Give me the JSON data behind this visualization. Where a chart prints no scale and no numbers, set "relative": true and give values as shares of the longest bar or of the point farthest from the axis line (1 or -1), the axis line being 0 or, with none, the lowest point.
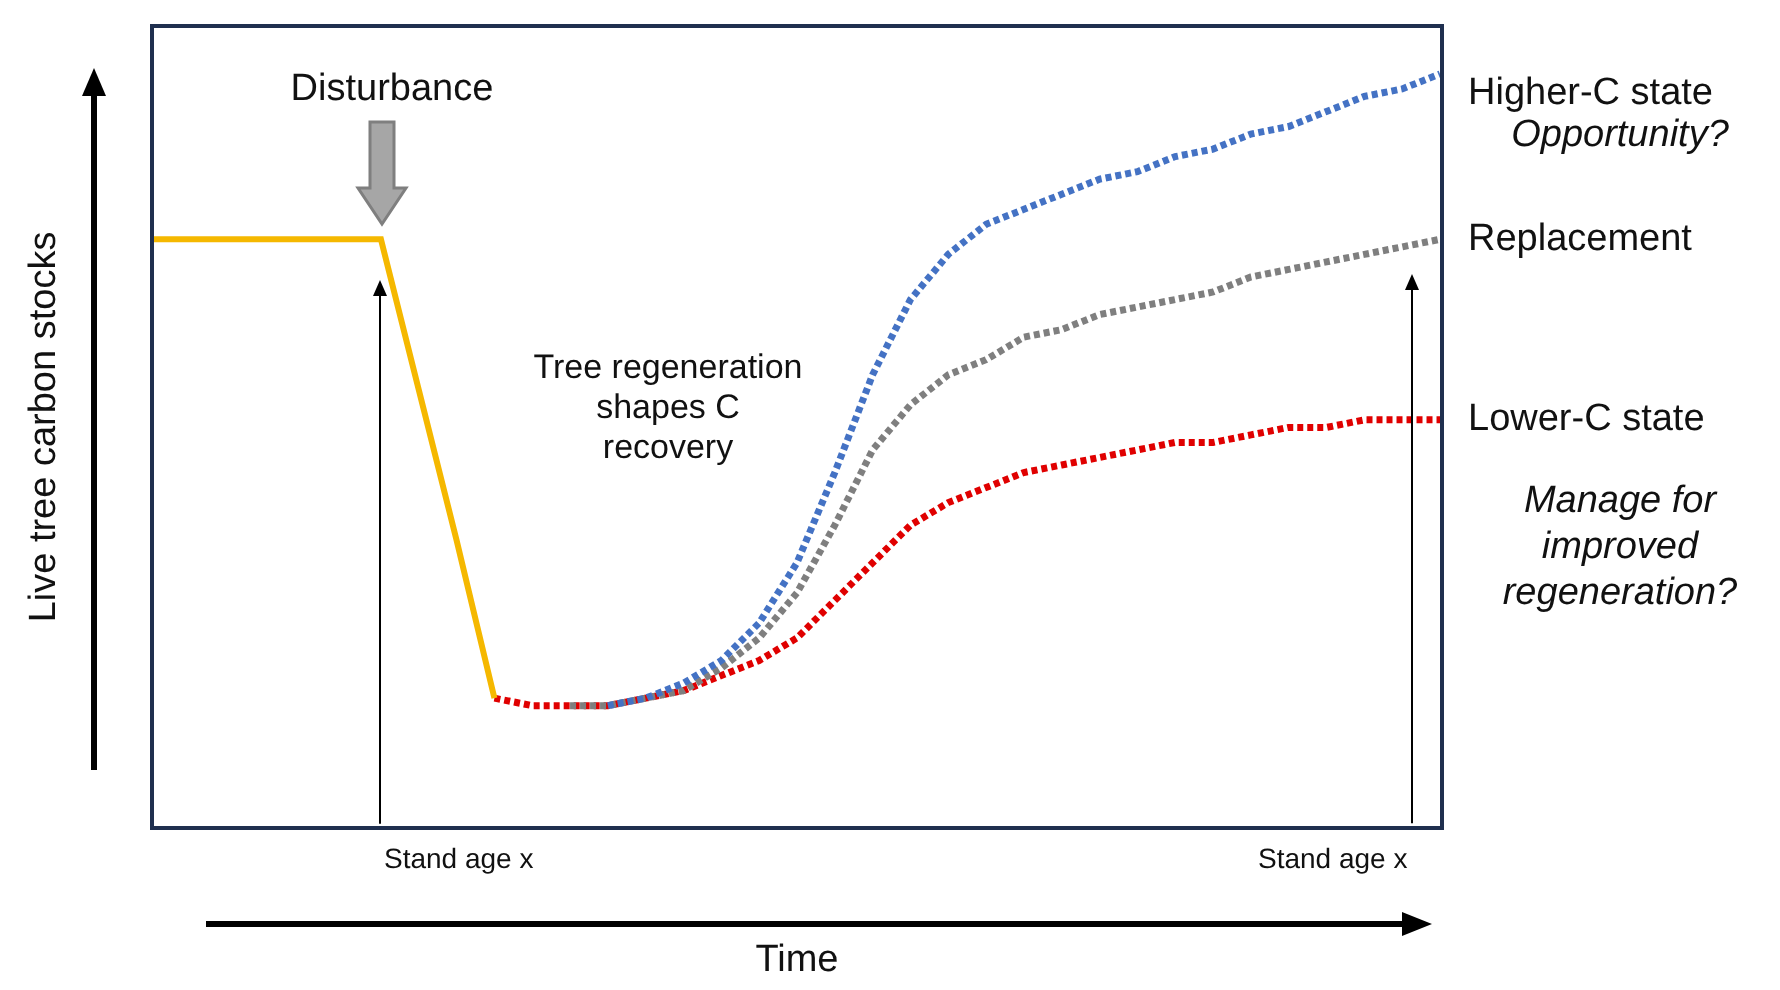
{
  "chart_data": {
    "type": "line",
    "relative": true,
    "xlabel": "Time",
    "ylabel": "Live tree carbon stocks",
    "categories": [
      null,
      null,
      null,
      null,
      null,
      null,
      null,
      null,
      null,
      null,
      null,
      null,
      null,
      null,
      null,
      null,
      null,
      null,
      null,
      null,
      null,
      null,
      null,
      null,
      null,
      null,
      null,
      null,
      null,
      null,
      null,
      null,
      null,
      null,
      null
    ],
    "series": [
      {
        "color": "#f5b800",
        "line_style": "solid",
        "values": [
          0.78,
          0.78,
          0.78,
          0.78,
          0.78,
          0.78,
          0.78,
          0.58,
          0.38,
          0.17,
          null,
          null,
          null,
          null,
          null,
          null,
          null,
          null,
          null,
          null,
          null,
          null,
          null,
          null,
          null,
          null,
          null,
          null,
          null,
          null,
          null,
          null,
          null,
          null,
          null
        ]
      },
      {
        "name": "Higher-C state",
        "color": "#4472c4",
        "line_style": "dotted",
        "values": [
          null,
          null,
          null,
          null,
          null,
          null,
          null,
          null,
          null,
          null,
          null,
          null,
          0.16,
          0.17,
          0.19,
          0.22,
          0.27,
          0.35,
          0.47,
          0.6,
          0.7,
          0.76,
          0.8,
          0.82,
          0.84,
          0.86,
          0.87,
          0.89,
          0.9,
          0.92,
          0.93,
          0.95,
          0.97,
          0.98,
          1
        ]
      },
      {
        "name": "Replacement",
        "color": "#7f7f7f",
        "line_style": "dotted",
        "values": [
          null,
          null,
          null,
          null,
          null,
          null,
          null,
          null,
          null,
          null,
          null,
          0.16,
          0.16,
          0.17,
          0.18,
          0.21,
          0.25,
          0.31,
          0.4,
          0.5,
          0.56,
          0.6,
          0.62,
          0.65,
          0.66,
          0.68,
          0.69,
          0.7,
          0.71,
          0.73,
          0.74,
          0.75,
          0.76,
          0.77,
          0.78
        ]
      },
      {
        "name": "Lower-C state",
        "color": "#e00000",
        "line_style": "dotted",
        "values": [
          null,
          null,
          null,
          null,
          null,
          null,
          null,
          null,
          null,
          0.17,
          0.16,
          0.16,
          0.16,
          0.17,
          0.18,
          0.2,
          0.22,
          0.25,
          0.3,
          0.35,
          0.4,
          0.43,
          0.45,
          0.47,
          0.48,
          0.49,
          0.5,
          0.51,
          0.51,
          0.52,
          0.53,
          0.53,
          0.54,
          0.54,
          0.54
        ]
      }
    ],
    "annotations": [
      "Disturbance",
      "Opportunity?",
      "Manage for improved regeneration?",
      "Tree regeneration shapes C recovery",
      "Stand age x",
      "Stand age x"
    ],
    "legend": false,
    "grid": false,
    "marker": "none"
  }
}
